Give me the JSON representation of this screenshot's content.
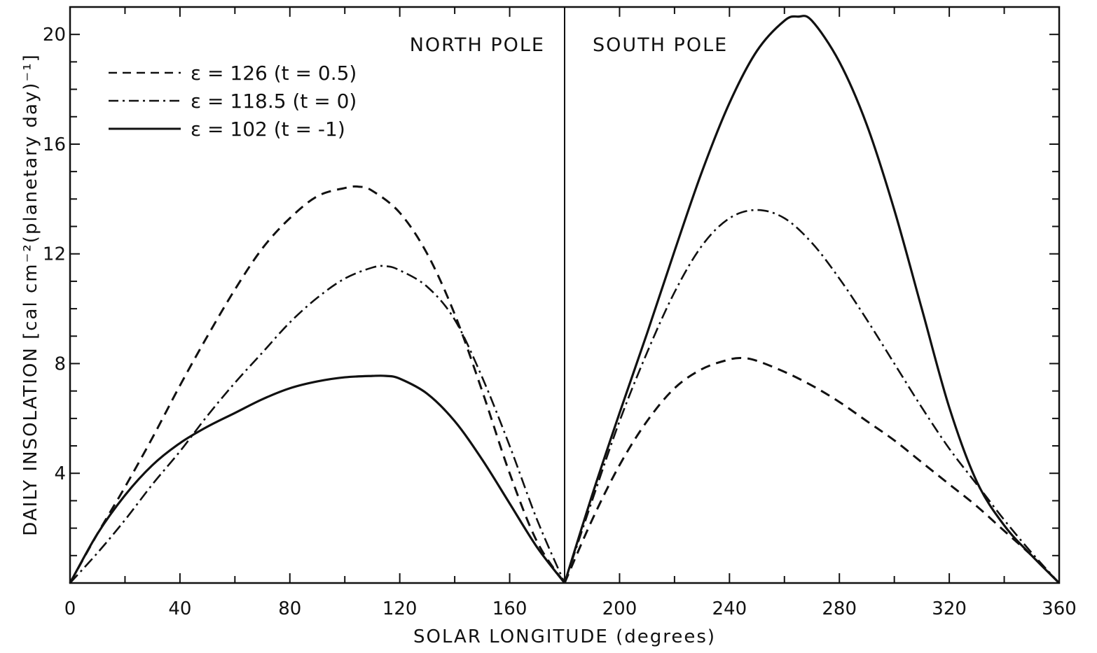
{
  "chart_data": {
    "type": "line",
    "xlabel": "SOLAR LONGITUDE  (degrees)",
    "ylabel": "DAILY INSOLATION [cal cm⁻²(planetary day)⁻¹]",
    "xlim": [
      0,
      360
    ],
    "ylim": [
      0,
      21
    ],
    "x_ticks": [
      0,
      40,
      80,
      120,
      160,
      200,
      240,
      280,
      320,
      360
    ],
    "y_ticks": [
      4,
      8,
      12,
      16,
      20
    ],
    "grid": false,
    "legend_position": "top-left",
    "divider_x": 180,
    "region_labels": [
      "NORTH POLE",
      "SOUTH POLE"
    ],
    "series": [
      {
        "name": "ε = 126  (t = 0.5)",
        "style": "dashed",
        "x": [
          0,
          10,
          20,
          30,
          40,
          50,
          60,
          70,
          80,
          90,
          100,
          105,
          110,
          120,
          130,
          140,
          150,
          160,
          170,
          180,
          190,
          200,
          210,
          220,
          230,
          240,
          245,
          250,
          260,
          270,
          280,
          290,
          300,
          310,
          320,
          330,
          340,
          350,
          360
        ],
        "y": [
          0,
          1.8,
          3.5,
          5.3,
          7.2,
          9.0,
          10.7,
          12.2,
          13.3,
          14.1,
          14.4,
          14.45,
          14.3,
          13.5,
          12.0,
          9.8,
          7.0,
          4.0,
          1.5,
          0,
          2.3,
          4.3,
          5.9,
          7.1,
          7.8,
          8.15,
          8.2,
          8.1,
          7.7,
          7.2,
          6.6,
          5.9,
          5.2,
          4.4,
          3.6,
          2.8,
          1.9,
          1.0,
          0
        ]
      },
      {
        "name": "ε = 118.5  (t = 0)",
        "style": "dashdot",
        "x": [
          0,
          10,
          20,
          30,
          40,
          50,
          60,
          70,
          80,
          90,
          100,
          110,
          115,
          120,
          130,
          140,
          150,
          160,
          170,
          180,
          190,
          200,
          210,
          220,
          230,
          240,
          250,
          260,
          270,
          280,
          290,
          300,
          310,
          320,
          330,
          340,
          350,
          360
        ],
        "y": [
          0,
          1.1,
          2.3,
          3.6,
          4.8,
          6.1,
          7.3,
          8.4,
          9.5,
          10.4,
          11.1,
          11.5,
          11.55,
          11.4,
          10.8,
          9.6,
          7.5,
          5.0,
          2.3,
          0,
          3.0,
          5.9,
          8.4,
          10.6,
          12.3,
          13.3,
          13.6,
          13.3,
          12.4,
          11.1,
          9.6,
          8.0,
          6.4,
          4.9,
          3.6,
          2.3,
          1.1,
          0
        ]
      },
      {
        "name": "ε = 102  (t = -1)",
        "style": "solid",
        "x": [
          0,
          10,
          20,
          30,
          40,
          50,
          60,
          70,
          80,
          90,
          100,
          110,
          115,
          120,
          130,
          140,
          150,
          160,
          170,
          180,
          190,
          200,
          210,
          220,
          230,
          240,
          250,
          260,
          265,
          270,
          280,
          290,
          300,
          310,
          320,
          330,
          340,
          350,
          360
        ],
        "y": [
          0,
          1.8,
          3.2,
          4.3,
          5.1,
          5.7,
          6.2,
          6.7,
          7.1,
          7.35,
          7.5,
          7.55,
          7.55,
          7.45,
          6.9,
          5.9,
          4.5,
          2.9,
          1.3,
          0,
          3.2,
          6.2,
          9.1,
          12.1,
          15.0,
          17.5,
          19.4,
          20.5,
          20.65,
          20.5,
          19.0,
          16.7,
          13.6,
          10.0,
          6.4,
          3.7,
          2.1,
          1.0,
          0
        ]
      }
    ]
  }
}
